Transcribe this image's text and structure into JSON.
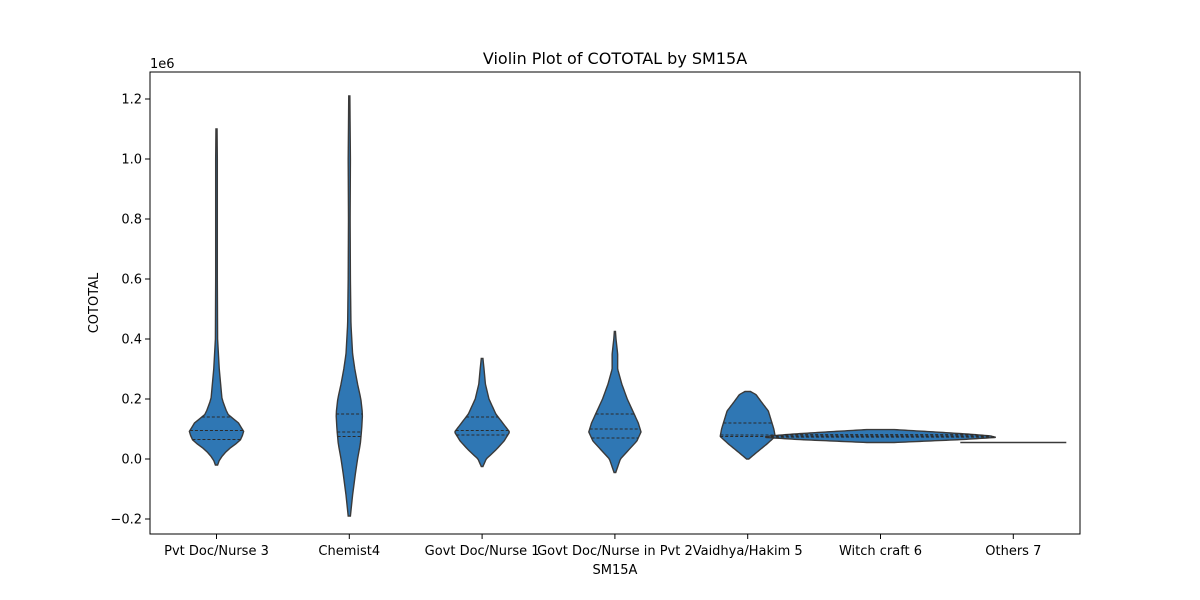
{
  "chart_data": {
    "type": "violin",
    "title": "Violin Plot of COTOTAL by SM15A",
    "xlabel": "SM15A",
    "ylabel": "COTOTAL",
    "y_multiplier_label": "1e6",
    "ylim": [
      -0.25,
      1.29
    ],
    "yticks": [
      -0.2,
      0.0,
      0.2,
      0.4,
      0.6,
      0.8,
      1.0,
      1.2
    ],
    "ytick_labels": [
      "−0.2",
      "0.0",
      "0.2",
      "0.4",
      "0.6",
      "0.8",
      "1.0",
      "1.2"
    ],
    "inner": "quartile",
    "color": "#2f77b4",
    "edge_color": "#3a3a3a",
    "categories": [
      "Pvt Doc/Nurse 3",
      "Chemist4",
      "Govt Doc/Nurse 1",
      "Govt Doc/Nurse in Pvt 2",
      "Vaidhya/Hakim 5",
      "Witch craft 6",
      "Others 7"
    ],
    "violins": [
      {
        "category": "Pvt Doc/Nurse 3",
        "min": -0.02,
        "max": 1.1,
        "quartiles": [
          0.065,
          0.095,
          0.14
        ],
        "profile": [
          [
            -0.02,
            0.004
          ],
          [
            0.0,
            0.012
          ],
          [
            0.03,
            0.04
          ],
          [
            0.06,
            0.085
          ],
          [
            0.09,
            0.1
          ],
          [
            0.12,
            0.08
          ],
          [
            0.15,
            0.04
          ],
          [
            0.2,
            0.02
          ],
          [
            0.3,
            0.01
          ],
          [
            0.4,
            0.004
          ],
          [
            0.6,
            0.003
          ],
          [
            0.8,
            0.003
          ],
          [
            1.0,
            0.003
          ],
          [
            1.1,
            0.002
          ]
        ]
      },
      {
        "category": "Chemist4",
        "min": -0.19,
        "max": 1.21,
        "quartiles": [
          0.075,
          0.09,
          0.15
        ],
        "profile": [
          [
            -0.19,
            0.004
          ],
          [
            -0.12,
            0.012
          ],
          [
            -0.05,
            0.022
          ],
          [
            0.0,
            0.03
          ],
          [
            0.05,
            0.04
          ],
          [
            0.1,
            0.045
          ],
          [
            0.15,
            0.048
          ],
          [
            0.2,
            0.042
          ],
          [
            0.25,
            0.03
          ],
          [
            0.3,
            0.02
          ],
          [
            0.35,
            0.012
          ],
          [
            0.45,
            0.006
          ],
          [
            0.6,
            0.004
          ],
          [
            0.8,
            0.003
          ],
          [
            1.0,
            0.004
          ],
          [
            1.21,
            0.002
          ]
        ]
      },
      {
        "category": "Govt Doc/Nurse 1",
        "min": -0.025,
        "max": 0.335,
        "quartiles": [
          0.08,
          0.095,
          0.14
        ],
        "profile": [
          [
            -0.025,
            0.003
          ],
          [
            0.0,
            0.015
          ],
          [
            0.03,
            0.05
          ],
          [
            0.06,
            0.08
          ],
          [
            0.09,
            0.1
          ],
          [
            0.12,
            0.075
          ],
          [
            0.15,
            0.05
          ],
          [
            0.2,
            0.025
          ],
          [
            0.25,
            0.012
          ],
          [
            0.3,
            0.007
          ],
          [
            0.335,
            0.003
          ]
        ]
      },
      {
        "category": "Govt Doc/Nurse in Pvt 2",
        "min": -0.045,
        "max": 0.425,
        "quartiles": [
          0.07,
          0.1,
          0.15
        ],
        "profile": [
          [
            -0.045,
            0.003
          ],
          [
            0.0,
            0.02
          ],
          [
            0.03,
            0.05
          ],
          [
            0.06,
            0.08
          ],
          [
            0.09,
            0.095
          ],
          [
            0.12,
            0.085
          ],
          [
            0.15,
            0.07
          ],
          [
            0.2,
            0.045
          ],
          [
            0.25,
            0.025
          ],
          [
            0.3,
            0.01
          ],
          [
            0.35,
            0.01
          ],
          [
            0.4,
            0.004
          ],
          [
            0.425,
            0.002
          ]
        ]
      },
      {
        "category": "Vaidhya/Hakim 5",
        "min": 0.0,
        "max": 0.225,
        "quartiles": [
          0.075,
          0.08,
          0.12
        ],
        "profile": [
          [
            0.0,
            0.004
          ],
          [
            0.02,
            0.03
          ],
          [
            0.05,
            0.07
          ],
          [
            0.075,
            0.1
          ],
          [
            0.1,
            0.095
          ],
          [
            0.13,
            0.085
          ],
          [
            0.16,
            0.075
          ],
          [
            0.19,
            0.05
          ],
          [
            0.215,
            0.03
          ],
          [
            0.225,
            0.01
          ]
        ]
      },
      {
        "category": "Witch craft 6",
        "min": 0.055,
        "max": 0.098,
        "quartiles": [
          0.073,
          0.077,
          0.081
        ],
        "profile": [
          [
            0.055,
            0.05
          ],
          [
            0.065,
            0.3
          ],
          [
            0.072,
            0.42
          ],
          [
            0.077,
            0.4
          ],
          [
            0.083,
            0.32
          ],
          [
            0.09,
            0.2
          ],
          [
            0.098,
            0.05
          ]
        ]
      },
      {
        "category": "Others 7",
        "min": 0.055,
        "max": 0.055,
        "quartiles": [
          0.055,
          0.055,
          0.055
        ],
        "profile": [
          [
            0.055,
            0.4
          ]
        ]
      }
    ]
  }
}
